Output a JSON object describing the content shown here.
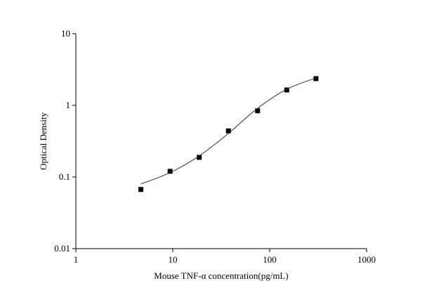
{
  "chart_data": {
    "type": "scatter",
    "xlabel": "Mouse TNF-α  concentration(pg/mL)",
    "ylabel": "Optical Density",
    "xlog": true,
    "ylog": true,
    "xlim": [
      1,
      1000
    ],
    "ylim": [
      0.01,
      10
    ],
    "xticks": [
      1,
      10,
      100,
      1000
    ],
    "yticks": [
      0.01,
      0.1,
      1,
      10
    ],
    "series": [
      {
        "type": "scatter",
        "color": "#000000",
        "x": [
          4.69,
          9.38,
          18.75,
          37.5,
          75,
          150,
          300
        ],
        "values": [
          0.067,
          0.12,
          0.188,
          0.44,
          0.84,
          1.64,
          2.36
        ]
      },
      {
        "type": "line",
        "color": "#333333",
        "x": [
          4.69,
          9.38,
          18.75,
          37.5,
          75,
          150,
          300
        ],
        "values": [
          0.08,
          0.115,
          0.197,
          0.405,
          0.91,
          1.68,
          2.41
        ]
      }
    ]
  }
}
